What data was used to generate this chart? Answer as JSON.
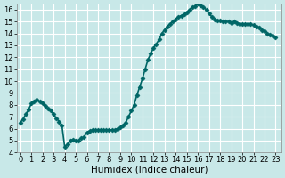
{
  "title": "",
  "xlabel": "Humidex (Indice chaleur)",
  "ylabel": "",
  "x_values": [
    0,
    0.25,
    0.5,
    0.75,
    1,
    1.25,
    1.5,
    1.75,
    2,
    2.25,
    2.5,
    2.75,
    3,
    3.25,
    3.5,
    3.75,
    4,
    4.25,
    4.5,
    4.75,
    5,
    5.25,
    5.5,
    5.75,
    6,
    6.25,
    6.5,
    6.75,
    7,
    7.25,
    7.5,
    7.75,
    8,
    8.25,
    8.5,
    8.75,
    9,
    9.25,
    9.5,
    9.75,
    10,
    10.25,
    10.5,
    10.75,
    11,
    11.25,
    11.5,
    11.75,
    12,
    12.25,
    12.5,
    12.75,
    13,
    13.25,
    13.5,
    13.75,
    14,
    14.25,
    14.5,
    14.75,
    15,
    15.25,
    15.5,
    15.75,
    16,
    16.25,
    16.5,
    16.75,
    17,
    17.25,
    17.5,
    17.75,
    18,
    18.25,
    18.5,
    18.75,
    19,
    19.25,
    19.5,
    19.75,
    20,
    20.25,
    20.5,
    20.75,
    21,
    21.25,
    21.5,
    21.75,
    22,
    22.25,
    22.5,
    22.75,
    23
  ],
  "y_values": [
    6.5,
    6.8,
    7.2,
    7.6,
    8.1,
    8.3,
    8.4,
    8.3,
    8.1,
    7.9,
    7.7,
    7.5,
    7.2,
    6.9,
    6.6,
    6.3,
    4.5,
    4.7,
    5.0,
    5.1,
    5.0,
    5.0,
    5.2,
    5.3,
    5.7,
    5.8,
    5.9,
    5.9,
    5.9,
    5.9,
    5.9,
    5.9,
    5.9,
    5.9,
    5.9,
    6.0,
    6.1,
    6.3,
    6.5,
    7.0,
    7.5,
    8.0,
    8.8,
    9.5,
    10.2,
    11.0,
    11.8,
    12.3,
    12.8,
    13.1,
    13.5,
    14.0,
    14.3,
    14.6,
    14.8,
    15.0,
    15.2,
    15.4,
    15.5,
    15.6,
    15.8,
    16.0,
    16.2,
    16.3,
    16.5,
    16.4,
    16.2,
    16.0,
    15.7,
    15.4,
    15.2,
    15.1,
    15.1,
    15.0,
    15.0,
    15.0,
    14.9,
    15.0,
    14.9,
    14.8,
    14.8,
    14.8,
    14.8,
    14.8,
    14.7,
    14.6,
    14.5,
    14.3,
    14.2,
    14.0,
    13.9,
    13.8,
    13.7
  ],
  "xticks": [
    0,
    1,
    2,
    3,
    4,
    5,
    6,
    7,
    8,
    9,
    10,
    11,
    12,
    13,
    14,
    15,
    16,
    17,
    18,
    19,
    20,
    21,
    22,
    23
  ],
  "yticks": [
    4,
    5,
    6,
    7,
    8,
    9,
    10,
    11,
    12,
    13,
    14,
    15,
    16
  ],
  "ylim": [
    4,
    16.5
  ],
  "xlim": [
    -0.3,
    23.5
  ],
  "line_color": "#006666",
  "marker_color": "#006666",
  "bg_color": "#c8e8e8",
  "grid_color": "#ffffff",
  "marker_size": 2.5,
  "line_width": 1.2,
  "tick_label_fontsize": 6,
  "xlabel_fontsize": 7.5
}
